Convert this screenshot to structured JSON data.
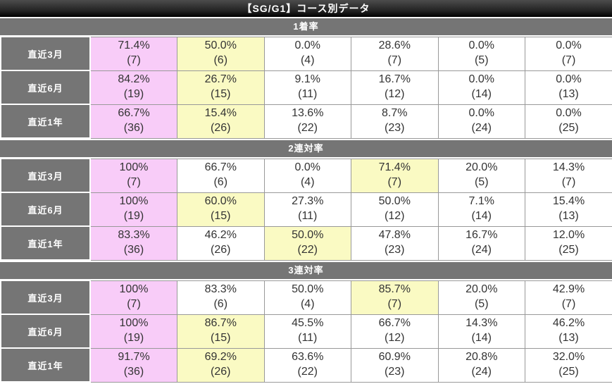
{
  "title": "【SG/G1】コース別データ",
  "colors": {
    "highlight_pink": "#f8ccf8",
    "highlight_yellow": "#fafac3",
    "header_gray": "#757575",
    "title_bar_black": "#000000",
    "cell_border": "#999999",
    "cell_text": "#333333"
  },
  "sections": [
    {
      "header": "1着率",
      "rows": [
        {
          "label": "直近3月",
          "cells": [
            {
              "pct": "71.4%",
              "n": "(7)",
              "hl": "pink"
            },
            {
              "pct": "50.0%",
              "n": "(6)",
              "hl": "yellow"
            },
            {
              "pct": "0.0%",
              "n": "(4)",
              "hl": "none"
            },
            {
              "pct": "28.6%",
              "n": "(7)",
              "hl": "none"
            },
            {
              "pct": "0.0%",
              "n": "(5)",
              "hl": "none"
            },
            {
              "pct": "0.0%",
              "n": "(7)",
              "hl": "none"
            }
          ]
        },
        {
          "label": "直近6月",
          "cells": [
            {
              "pct": "84.2%",
              "n": "(19)",
              "hl": "pink"
            },
            {
              "pct": "26.7%",
              "n": "(15)",
              "hl": "yellow"
            },
            {
              "pct": "9.1%",
              "n": "(11)",
              "hl": "none"
            },
            {
              "pct": "16.7%",
              "n": "(12)",
              "hl": "none"
            },
            {
              "pct": "0.0%",
              "n": "(14)",
              "hl": "none"
            },
            {
              "pct": "0.0%",
              "n": "(13)",
              "hl": "none"
            }
          ]
        },
        {
          "label": "直近1年",
          "cells": [
            {
              "pct": "66.7%",
              "n": "(36)",
              "hl": "pink"
            },
            {
              "pct": "15.4%",
              "n": "(26)",
              "hl": "yellow"
            },
            {
              "pct": "13.6%",
              "n": "(22)",
              "hl": "none"
            },
            {
              "pct": "8.7%",
              "n": "(23)",
              "hl": "none"
            },
            {
              "pct": "0.0%",
              "n": "(24)",
              "hl": "none"
            },
            {
              "pct": "0.0%",
              "n": "(25)",
              "hl": "none"
            }
          ]
        }
      ]
    },
    {
      "header": "2連対率",
      "rows": [
        {
          "label": "直近3月",
          "cells": [
            {
              "pct": "100%",
              "n": "(7)",
              "hl": "pink"
            },
            {
              "pct": "66.7%",
              "n": "(6)",
              "hl": "none"
            },
            {
              "pct": "0.0%",
              "n": "(4)",
              "hl": "none"
            },
            {
              "pct": "71.4%",
              "n": "(7)",
              "hl": "yellow"
            },
            {
              "pct": "20.0%",
              "n": "(5)",
              "hl": "none"
            },
            {
              "pct": "14.3%",
              "n": "(7)",
              "hl": "none"
            }
          ]
        },
        {
          "label": "直近6月",
          "cells": [
            {
              "pct": "100%",
              "n": "(19)",
              "hl": "pink"
            },
            {
              "pct": "60.0%",
              "n": "(15)",
              "hl": "yellow"
            },
            {
              "pct": "27.3%",
              "n": "(11)",
              "hl": "none"
            },
            {
              "pct": "50.0%",
              "n": "(12)",
              "hl": "none"
            },
            {
              "pct": "7.1%",
              "n": "(14)",
              "hl": "none"
            },
            {
              "pct": "15.4%",
              "n": "(13)",
              "hl": "none"
            }
          ]
        },
        {
          "label": "直近1年",
          "cells": [
            {
              "pct": "83.3%",
              "n": "(36)",
              "hl": "pink"
            },
            {
              "pct": "46.2%",
              "n": "(26)",
              "hl": "none"
            },
            {
              "pct": "50.0%",
              "n": "(22)",
              "hl": "yellow"
            },
            {
              "pct": "47.8%",
              "n": "(23)",
              "hl": "none"
            },
            {
              "pct": "16.7%",
              "n": "(24)",
              "hl": "none"
            },
            {
              "pct": "12.0%",
              "n": "(25)",
              "hl": "none"
            }
          ]
        }
      ]
    },
    {
      "header": "3連対率",
      "rows": [
        {
          "label": "直近3月",
          "cells": [
            {
              "pct": "100%",
              "n": "(7)",
              "hl": "pink"
            },
            {
              "pct": "83.3%",
              "n": "(6)",
              "hl": "none"
            },
            {
              "pct": "50.0%",
              "n": "(4)",
              "hl": "none"
            },
            {
              "pct": "85.7%",
              "n": "(7)",
              "hl": "yellow"
            },
            {
              "pct": "20.0%",
              "n": "(5)",
              "hl": "none"
            },
            {
              "pct": "42.9%",
              "n": "(7)",
              "hl": "none"
            }
          ]
        },
        {
          "label": "直近6月",
          "cells": [
            {
              "pct": "100%",
              "n": "(19)",
              "hl": "pink"
            },
            {
              "pct": "86.7%",
              "n": "(15)",
              "hl": "yellow"
            },
            {
              "pct": "45.5%",
              "n": "(11)",
              "hl": "none"
            },
            {
              "pct": "66.7%",
              "n": "(12)",
              "hl": "none"
            },
            {
              "pct": "14.3%",
              "n": "(14)",
              "hl": "none"
            },
            {
              "pct": "46.2%",
              "n": "(13)",
              "hl": "none"
            }
          ]
        },
        {
          "label": "直近1年",
          "cells": [
            {
              "pct": "91.7%",
              "n": "(36)",
              "hl": "pink"
            },
            {
              "pct": "69.2%",
              "n": "(26)",
              "hl": "yellow"
            },
            {
              "pct": "63.6%",
              "n": "(22)",
              "hl": "none"
            },
            {
              "pct": "60.9%",
              "n": "(23)",
              "hl": "none"
            },
            {
              "pct": "20.8%",
              "n": "(24)",
              "hl": "none"
            },
            {
              "pct": "32.0%",
              "n": "(25)",
              "hl": "none"
            }
          ]
        }
      ]
    }
  ]
}
